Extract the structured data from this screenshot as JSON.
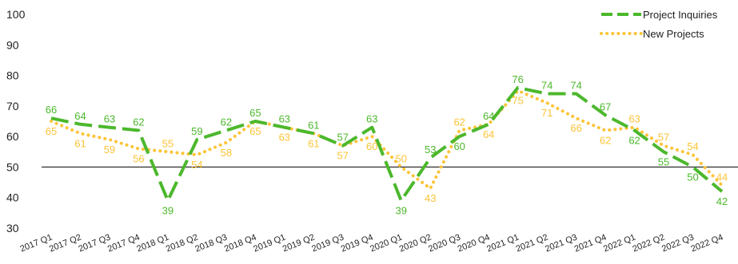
{
  "chart_data": {
    "type": "line",
    "title": "",
    "xlabel": "",
    "ylabel": "",
    "ylim": [
      30,
      100
    ],
    "yticks": [
      30,
      40,
      50,
      60,
      70,
      80,
      90,
      100
    ],
    "reference_line": 50,
    "legend_position": "top-right",
    "categories": [
      "2017 Q1",
      "2017 Q2",
      "2017 Q3",
      "2017 Q4",
      "2018 Q1",
      "2018 Q2",
      "2018 Q3",
      "2018 Q4",
      "2019 Q1",
      "2019 Q2",
      "2019 Q3",
      "2019 Q4",
      "2020 Q1",
      "2020 Q2",
      "2020 Q3",
      "2020 Q4",
      "2021 Q1",
      "2021 Q2",
      "2021 Q3",
      "2021 Q4",
      "2022 Q1",
      "2022 Q2",
      "2022 Q3",
      "2022 Q4"
    ],
    "series": [
      {
        "name": "Project Inquiries",
        "color": "#4cb82c",
        "style": "dashed",
        "values": [
          66,
          64,
          63,
          62,
          39,
          59,
          62,
          65,
          63,
          61,
          57,
          63,
          39,
          53,
          60,
          64,
          76,
          74,
          74,
          67,
          62,
          55,
          50,
          42
        ]
      },
      {
        "name": "New Projects",
        "color": "#fcc438",
        "style": "dotted",
        "values": [
          65,
          61,
          59,
          56,
          55,
          54,
          58,
          65,
          63,
          61,
          57,
          60,
          50,
          43,
          62,
          64,
          75,
          71,
          66,
          62,
          63,
          57,
          54,
          44
        ]
      }
    ]
  }
}
